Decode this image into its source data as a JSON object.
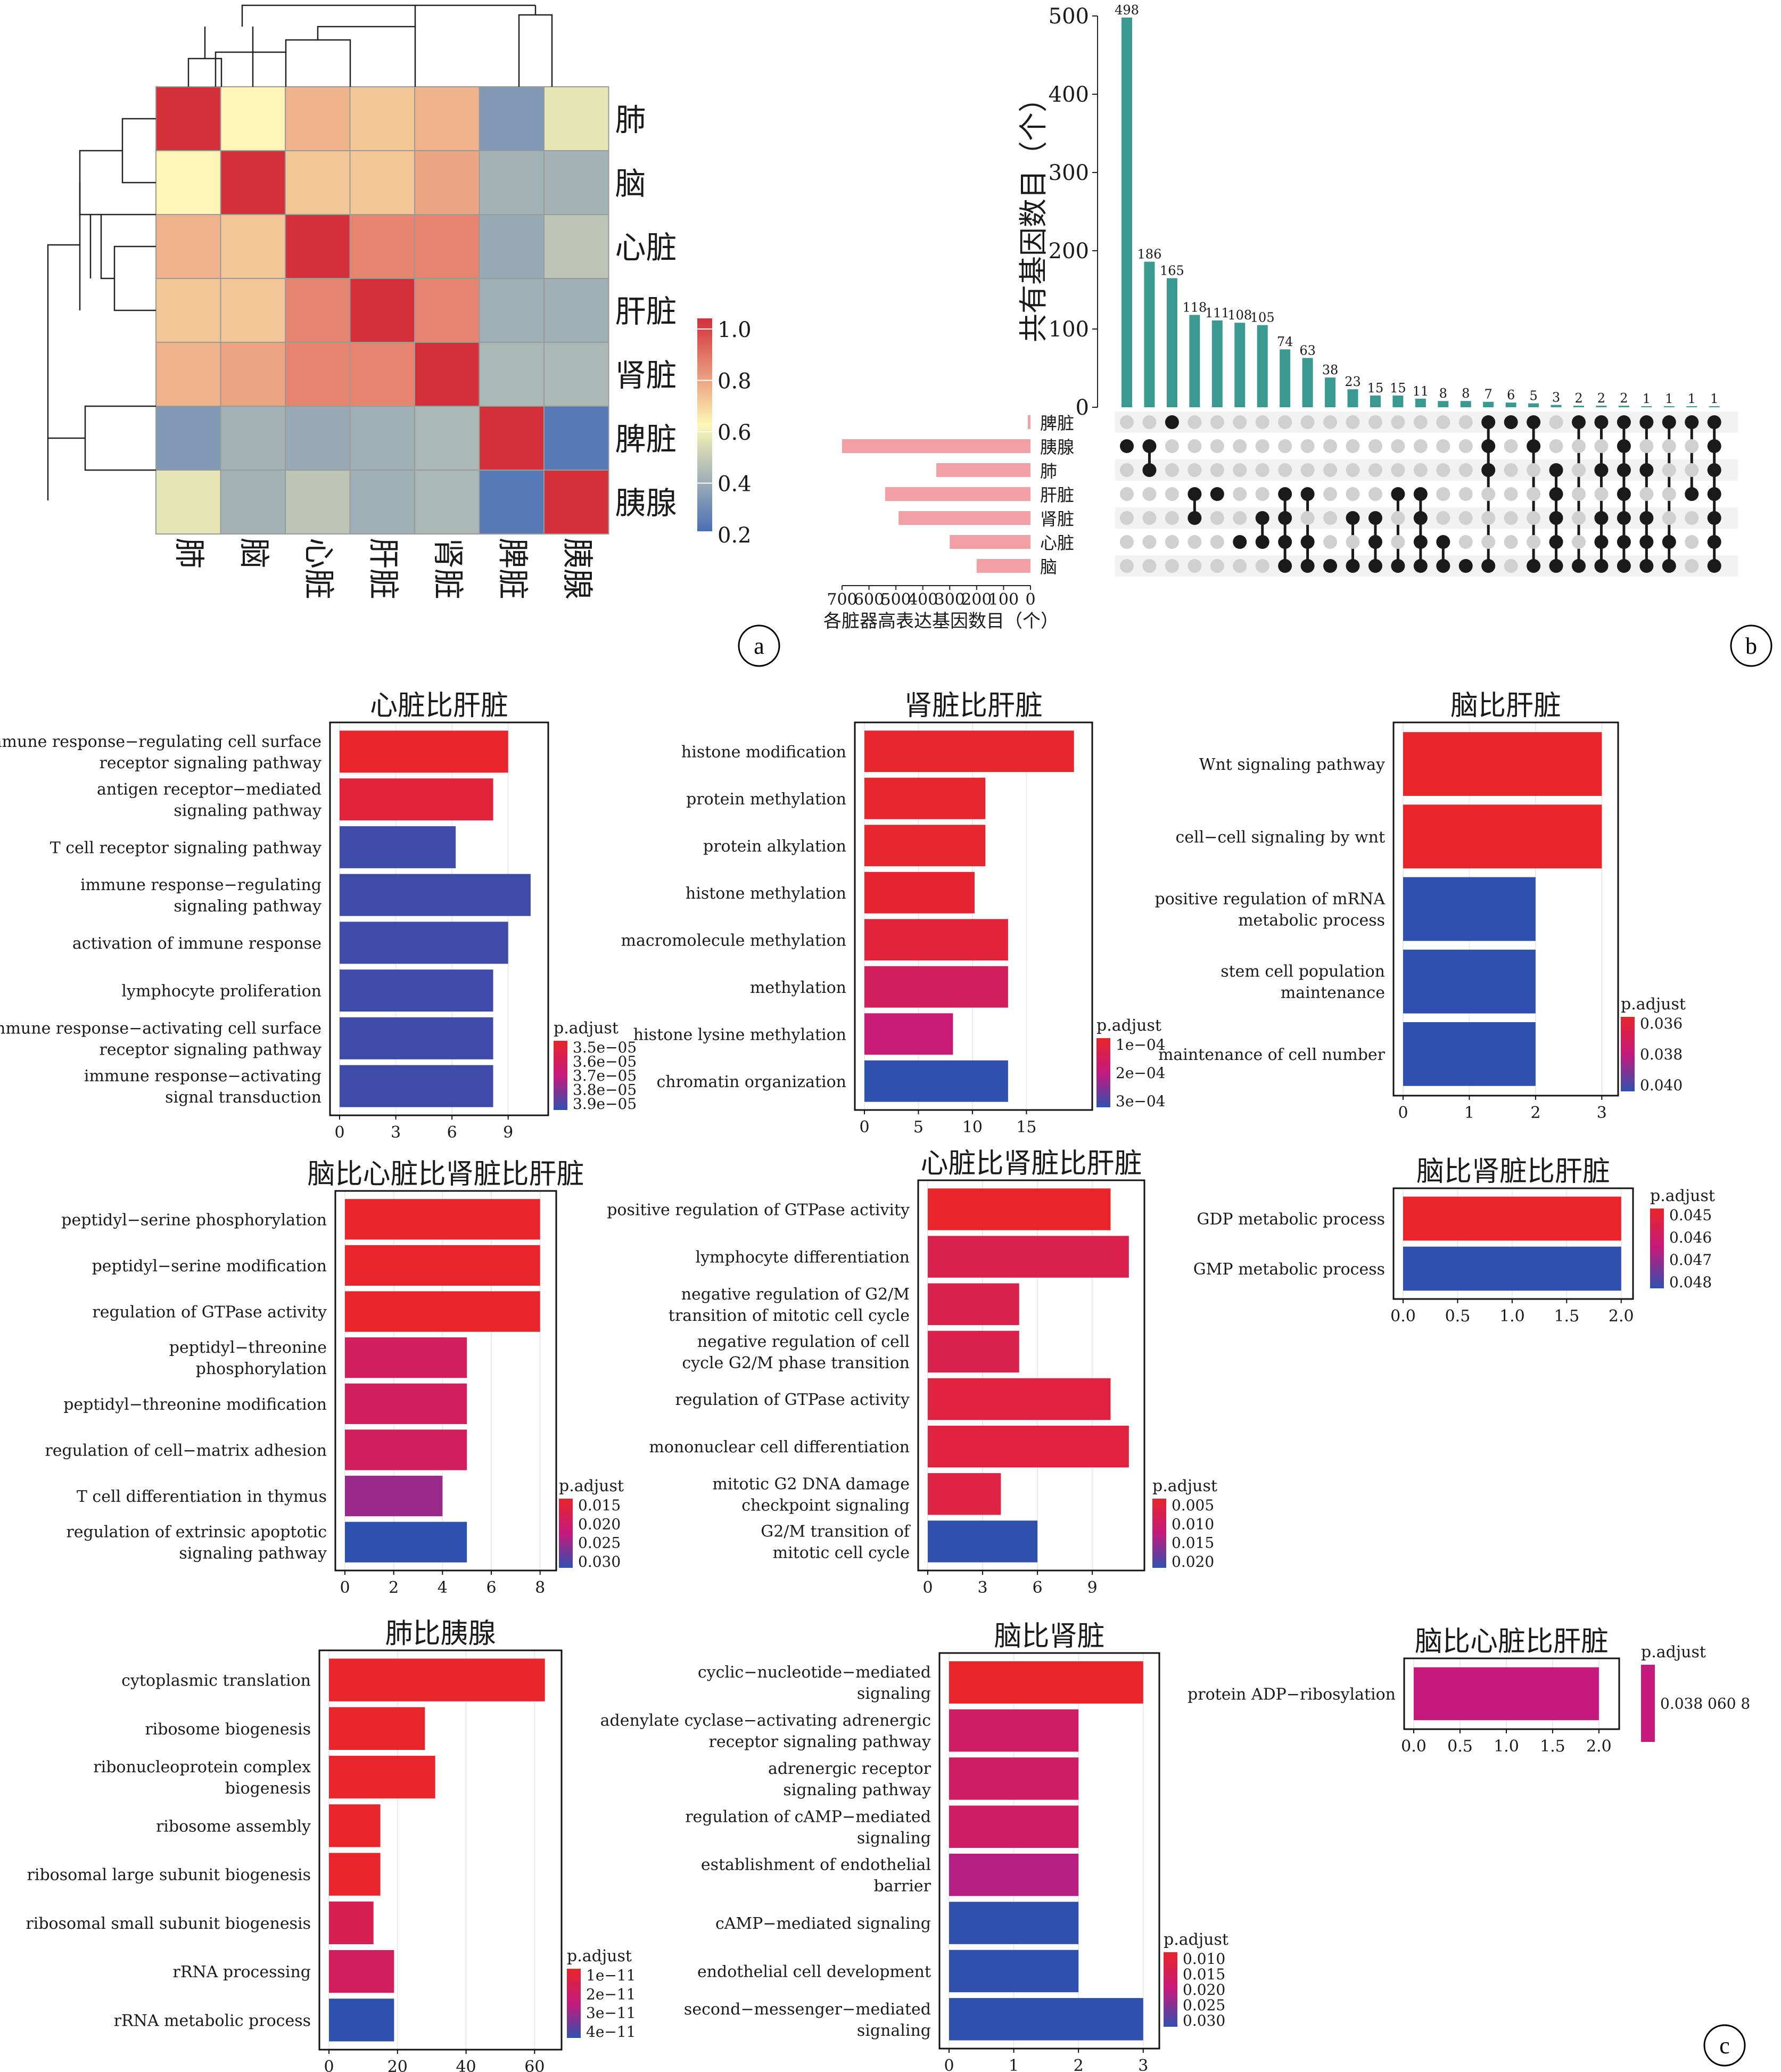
{
  "panel_labels": {
    "a": "a",
    "b": "b",
    "c": "c"
  },
  "colors": {
    "teal": "#3a9a91",
    "pink": "#f29fa6",
    "dot_on": "#1a1a1a",
    "dot_off": "#d0d0d0",
    "heat_low": "#4a6fb5",
    "heat_mid": "#fdf7b6",
    "heat_high": "#d3303a",
    "padj_low": "#e8252a",
    "padj_high": "#3050ae"
  },
  "chart_data": [
    {
      "id": "heatmap",
      "type": "heatmap",
      "title": "",
      "row_labels": [
        "肺",
        "脑",
        "心脏",
        "肝脏",
        "肾脏",
        "脾脏",
        "胰腺"
      ],
      "col_labels": [
        "肺",
        "脑",
        "心脏",
        "肝脏",
        "肾脏",
        "脾脏",
        "胰腺"
      ],
      "values": [
        [
          1.0,
          0.58,
          0.72,
          0.68,
          0.72,
          0.28,
          0.52
        ],
        [
          0.58,
          1.0,
          0.68,
          0.68,
          0.75,
          0.36,
          0.36
        ],
        [
          0.72,
          0.68,
          1.0,
          0.82,
          0.82,
          0.33,
          0.42
        ],
        [
          0.68,
          0.68,
          0.82,
          1.0,
          0.82,
          0.35,
          0.35
        ],
        [
          0.72,
          0.75,
          0.82,
          0.82,
          1.0,
          0.38,
          0.38
        ],
        [
          0.28,
          0.36,
          0.33,
          0.35,
          0.38,
          1.0,
          0.18
        ],
        [
          0.52,
          0.36,
          0.42,
          0.35,
          0.38,
          0.18,
          1.0
        ]
      ],
      "colorbar_ticks": [
        "1.0",
        "0.8",
        "0.6",
        "0.4",
        "0.2"
      ],
      "range": [
        0.15,
        1.0
      ]
    },
    {
      "id": "upset",
      "type": "bar",
      "title": "",
      "ylabel": "共有基因数目（个）",
      "yticks": [
        "500",
        "400",
        "300",
        "200",
        "100",
        "0"
      ],
      "ylim": [
        0,
        500
      ],
      "intersection_values": [
        498,
        186,
        165,
        118,
        111,
        108,
        105,
        74,
        63,
        38,
        23,
        15,
        15,
        11,
        8,
        8,
        7,
        6,
        5,
        3,
        2,
        2,
        2,
        1,
        1,
        1,
        1
      ],
      "intersection_labels": [
        "498",
        "186",
        "165",
        "118",
        "111",
        "108",
        "105",
        "74",
        "63",
        "38",
        "23",
        "15",
        "15",
        "11",
        "8",
        "8",
        "7",
        "6",
        "5",
        "3",
        "2",
        "2",
        "2",
        "1",
        "1",
        "1",
        "1"
      ],
      "sets": [
        "脾脏",
        "胰腺",
        "肺",
        "肝脏",
        "肾脏",
        "心脏",
        "脑"
      ],
      "set_sizes": [
        10,
        700,
        350,
        540,
        490,
        300,
        200
      ],
      "set_xlabel": "各脏器高表达基因数目（个）",
      "set_xticks": [
        "700",
        "600",
        "500",
        "400",
        "300",
        "200",
        "100",
        "0"
      ],
      "set_xlim": [
        0,
        700
      ],
      "membership": [
        [
          1
        ],
        [
          1,
          2
        ],
        [
          0
        ],
        [
          3,
          4
        ],
        [
          3
        ],
        [
          5
        ],
        [
          4,
          5
        ],
        [
          3,
          4,
          5,
          6
        ],
        [
          3,
          5,
          6
        ],
        [
          6
        ],
        [
          4,
          6
        ],
        [
          4,
          5,
          6
        ],
        [
          3,
          6
        ],
        [
          3,
          4,
          5,
          6
        ],
        [
          5,
          6
        ],
        [
          6
        ],
        [
          0,
          1,
          2,
          6
        ],
        [
          0
        ],
        [
          0,
          1,
          6
        ],
        [
          2,
          3,
          4,
          5,
          6
        ],
        [
          0,
          6
        ],
        [
          0,
          2,
          4,
          5,
          6
        ],
        [
          0,
          1,
          2,
          3,
          4,
          5,
          6
        ],
        [
          0,
          2,
          4,
          5,
          6
        ],
        [
          0,
          5,
          6
        ],
        [
          0,
          3
        ],
        [
          0,
          1,
          2,
          3,
          4,
          5,
          6
        ]
      ]
    },
    {
      "id": "go1",
      "type": "bar",
      "title": "心脏比肝脏",
      "categories": [
        "immune response−regulating cell surface\nreceptor signaling pathway",
        "antigen receptor−mediated\nsignaling pathway",
        "T cell receptor signaling pathway",
        "immune response−regulating\nsignaling pathway",
        "activation of immune response",
        "lymphocyte proliferation",
        "immune response−activating cell surface\nreceptor signaling pathway",
        "immune response−activating\nsignal transduction"
      ],
      "values": [
        9,
        8.2,
        6.2,
        10.2,
        9.0,
        8.2,
        8.2,
        8.2
      ],
      "padj": [
        0.0,
        0.1,
        0.95,
        0.95,
        0.95,
        0.95,
        0.95,
        0.95
      ],
      "xlim": [
        0,
        10.8
      ],
      "xticks": [
        0,
        3,
        6,
        9
      ],
      "legend_title": "p.adjust",
      "legend_ticks": [
        "3.5e−05",
        "3.6e−05",
        "3.7e−05",
        "3.8e−05",
        "3.9e−05"
      ]
    },
    {
      "id": "go2",
      "type": "bar",
      "title": "肾脏比肝脏",
      "categories": [
        "histone modification",
        "protein methylation",
        "protein alkylation",
        "histone methylation",
        "macromolecule methylation",
        "methylation",
        "histone lysine methylation",
        "chromatin organization"
      ],
      "values": [
        19.4,
        11.2,
        11.2,
        10.2,
        13.3,
        13.3,
        8.2,
        13.3
      ],
      "padj": [
        0.02,
        0.02,
        0.02,
        0.03,
        0.1,
        0.3,
        0.45,
        1.0
      ],
      "xlim": [
        0,
        20.5
      ],
      "xticks": [
        0,
        5,
        10,
        15
      ],
      "legend_title": "p.adjust",
      "legend_ticks": [
        "1e−04",
        "2e−04",
        "3e−04"
      ]
    },
    {
      "id": "go3",
      "type": "bar",
      "title": "脑比肝脏",
      "categories": [
        "Wnt signaling pathway",
        "cell−cell signaling by wnt",
        "positive regulation of mRNA\nmetabolic process",
        "stem cell population\nmaintenance",
        "maintenance of cell number"
      ],
      "values": [
        3,
        3,
        2,
        2,
        2
      ],
      "padj": [
        0.0,
        0.0,
        1.0,
        1.0,
        1.0
      ],
      "xlim": [
        0,
        3.15
      ],
      "xticks": [
        0,
        1,
        2,
        3
      ],
      "legend_title": "p.adjust",
      "legend_ticks": [
        "0.036",
        "0.038",
        "0.040"
      ]
    },
    {
      "id": "go4",
      "type": "bar",
      "title": "脑比心脏比肾脏比肝脏",
      "categories": [
        "peptidyl−serine phosphorylation",
        "peptidyl−serine modification",
        "regulation of GTPase activity",
        "peptidyl−threonine\nphosphorylation",
        "peptidyl−threonine modification",
        "regulation of cell−matrix adhesion",
        "T cell differentiation in thymus",
        "regulation of extrinsic apoptotic\nsignaling pathway"
      ],
      "values": [
        8,
        8,
        8,
        5,
        5,
        5,
        4,
        5
      ],
      "padj": [
        0.0,
        0.0,
        0.0,
        0.3,
        0.3,
        0.3,
        0.65,
        1.0
      ],
      "xlim": [
        0,
        8.4
      ],
      "xticks": [
        0,
        2,
        4,
        6,
        8
      ],
      "legend_title": "p.adjust",
      "legend_ticks": [
        "0.015",
        "0.020",
        "0.025",
        "0.030"
      ]
    },
    {
      "id": "go5",
      "type": "bar",
      "title": "心脏比肾脏比肝脏",
      "categories": [
        "positive regulation of GTPase activity",
        "lymphocyte differentiation",
        "negative regulation of G2/M\ntransition of mitotic cell cycle",
        "negative regulation of cell\ncycle G2/M phase transition",
        "regulation of GTPase activity",
        "mononuclear cell differentiation",
        "mitotic G2 DNA damage\ncheckpoint signaling",
        "G2/M transition of\nmitotic cell cycle"
      ],
      "values": [
        10,
        11,
        5,
        5,
        10,
        11,
        4,
        6
      ],
      "padj": [
        0.0,
        0.2,
        0.2,
        0.2,
        0.12,
        0.12,
        0.15,
        1.0
      ],
      "xlim": [
        0,
        11.5
      ],
      "xticks": [
        0,
        3,
        6,
        9
      ],
      "legend_title": "p.adjust",
      "legend_ticks": [
        "0.005",
        "0.010",
        "0.015",
        "0.020"
      ]
    },
    {
      "id": "go6",
      "type": "bar",
      "title": "脑比肾脏比肝脏",
      "categories": [
        "GDP metabolic process",
        "GMP metabolic process"
      ],
      "values": [
        2,
        2
      ],
      "padj": [
        0.0,
        1.0
      ],
      "xlim": [
        0,
        2.05
      ],
      "xticks": [
        0.0,
        0.5,
        1.0,
        1.5,
        2.0
      ],
      "legend_title": "p.adjust",
      "legend_ticks": [
        "0.045",
        "0.046",
        "0.047",
        "0.048"
      ]
    },
    {
      "id": "go7",
      "type": "bar",
      "title": "肺比胰腺",
      "categories": [
        "cytoplasmic translation",
        "ribosome biogenesis",
        "ribonucleoprotein complex\nbiogenesis",
        "ribosome assembly",
        "ribosomal large subunit biogenesis",
        "ribosomal small subunit biogenesis",
        "rRNA processing",
        "rRNA metabolic process"
      ],
      "values": [
        63,
        28,
        31,
        15,
        15,
        13,
        19,
        19
      ],
      "padj": [
        0.0,
        0.0,
        0.0,
        0.0,
        0.0,
        0.25,
        0.3,
        1.0
      ],
      "xlim": [
        0,
        66
      ],
      "xticks": [
        0,
        20,
        40,
        60
      ],
      "legend_title": "p.adjust",
      "legend_ticks": [
        "1e−11",
        "2e−11",
        "3e−11",
        "4e−11"
      ]
    },
    {
      "id": "go8",
      "type": "bar",
      "title": "脑比肾脏",
      "categories": [
        "cyclic−nucleotide−mediated\nsignaling",
        "adenylate cyclase−activating adrenergic\nreceptor signaling pathway",
        "adrenergic receptor\nsignaling pathway",
        "regulation of cAMP−mediated\nsignaling",
        "establishment of endothelial\nbarrier",
        "cAMP−mediated signaling",
        "endothelial cell development",
        "second−messenger−mediated\nsignaling"
      ],
      "values": [
        3,
        2,
        2,
        2,
        2,
        2,
        2,
        3
      ],
      "padj": [
        0.0,
        0.35,
        0.35,
        0.35,
        0.55,
        1.0,
        1.0,
        1.0
      ],
      "xlim": [
        0,
        3.15
      ],
      "xticks": [
        0,
        1,
        2,
        3
      ],
      "legend_title": "p.adjust",
      "legend_ticks": [
        "0.010",
        "0.015",
        "0.020",
        "0.025",
        "0.030"
      ]
    },
    {
      "id": "go9",
      "type": "bar",
      "title": "脑比心脏比肝脏",
      "categories": [
        "protein ADP−ribosylation"
      ],
      "values": [
        2
      ],
      "padj": [
        0.5
      ],
      "xlim": [
        0,
        2.15
      ],
      "xticks": [
        0.0,
        0.5,
        1.0,
        1.5,
        2.0
      ],
      "legend_title": "p.adjust",
      "legend_ticks": [
        "0.038 060 8"
      ]
    }
  ]
}
